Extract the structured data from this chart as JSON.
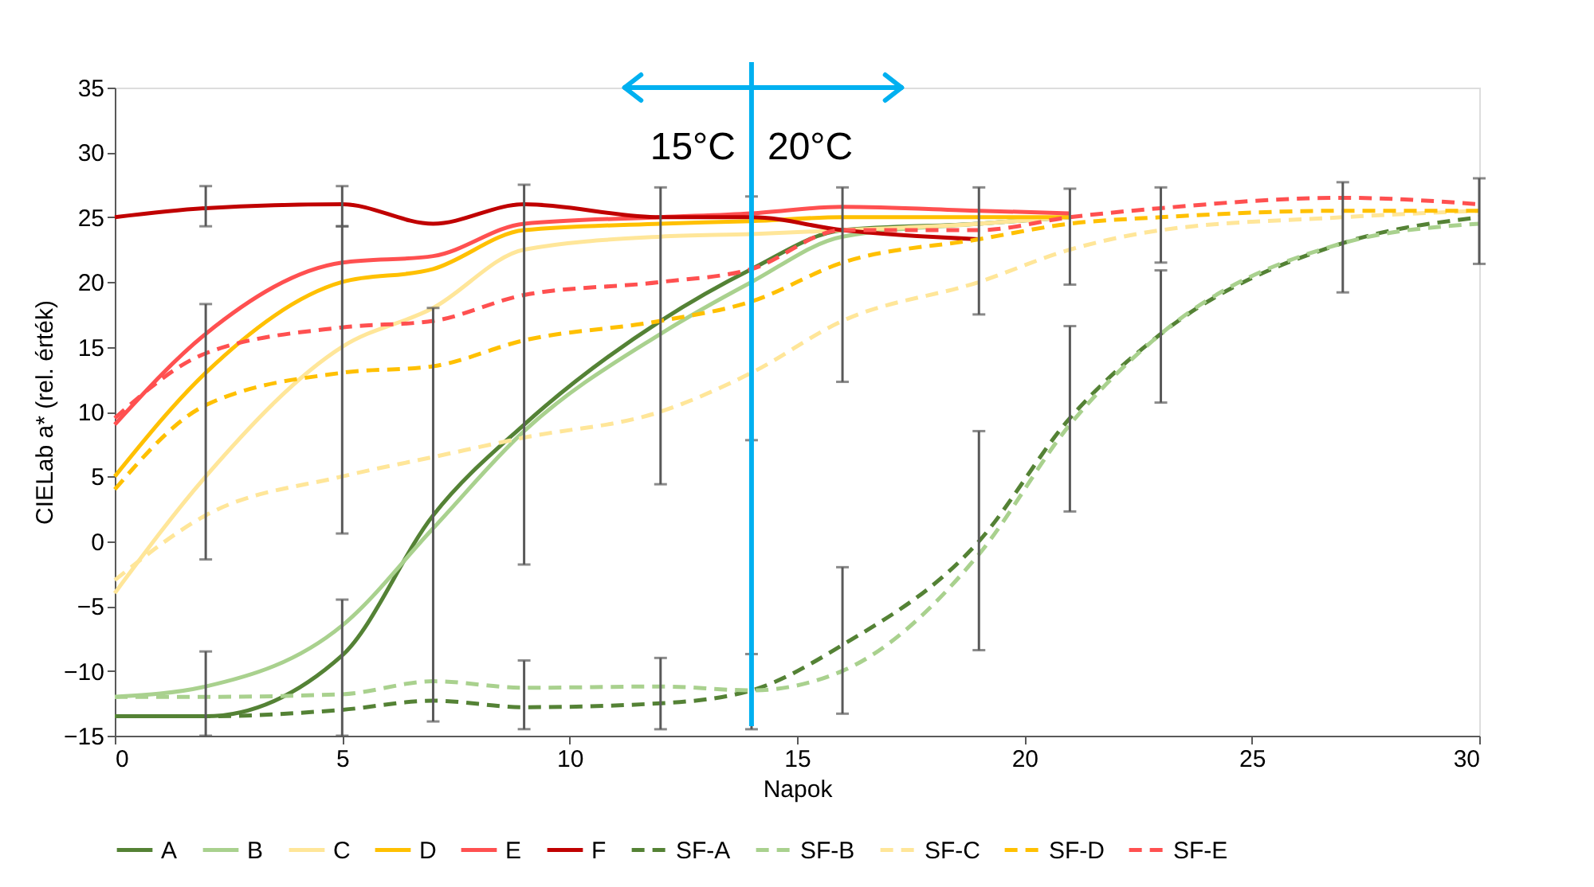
{
  "chart_data": {
    "type": "line",
    "xlabel": "Napok",
    "ylabel": "CIELab a* (rel. érték)",
    "xlim": [
      0,
      30
    ],
    "xticks": [
      0,
      5,
      10,
      15,
      20,
      25,
      30
    ],
    "ylim": [
      -15,
      35
    ],
    "yticks": [
      -15,
      -10,
      -5,
      0,
      5,
      10,
      15,
      20,
      25,
      30,
      35
    ],
    "grid": false,
    "legend": "bottom",
    "marker": "none",
    "series": [
      {
        "name": "A",
        "color": "#548235",
        "line_style": "solid",
        "x": [
          0,
          2,
          5,
          7,
          9,
          12,
          14,
          16,
          19,
          21
        ],
        "values": [
          -13.5,
          -13.5,
          -8.8,
          2,
          9,
          17,
          21,
          24,
          24.5,
          25
        ],
        "errors": [
          null,
          [
            -15,
            -8.5
          ],
          [
            -15,
            -4.5
          ],
          [
            -13.9,
            18
          ],
          [
            -1.8,
            27.5
          ],
          [
            4.4,
            27.3
          ],
          [
            7.8,
            26.6
          ],
          null,
          null,
          null
        ]
      },
      {
        "name": "B",
        "color": "#a9d18e",
        "line_style": "solid",
        "x": [
          0,
          2,
          5,
          7,
          9,
          12,
          14,
          16,
          19,
          21
        ],
        "values": [
          -12,
          -11.2,
          -6.5,
          1,
          8.5,
          16,
          20,
          23.5,
          24.5,
          25
        ]
      },
      {
        "name": "C",
        "color": "#ffe699",
        "line_style": "solid",
        "x": [
          0,
          2,
          5,
          7,
          9,
          12,
          14,
          16,
          19,
          21
        ],
        "values": [
          -4,
          5,
          15,
          18,
          22.5,
          23.5,
          23.7,
          24,
          24.5,
          25
        ],
        "errors": [
          null,
          [
            -1.4,
            18.3
          ],
          [
            0.6,
            24.3
          ],
          null,
          null,
          null,
          null,
          null,
          null,
          null
        ]
      },
      {
        "name": "D",
        "color": "#ffc000",
        "line_style": "solid",
        "x": [
          0,
          2,
          5,
          7,
          9,
          12,
          14,
          16,
          19,
          21
        ],
        "values": [
          5,
          13,
          20,
          21,
          24,
          24.5,
          24.7,
          25,
          25,
          25
        ]
      },
      {
        "name": "E",
        "color": "#ff5050",
        "line_style": "solid",
        "x": [
          0,
          2,
          5,
          7,
          9,
          12,
          14,
          16,
          19,
          21
        ],
        "values": [
          9,
          16,
          21.5,
          22,
          24.5,
          25,
          25.3,
          25.8,
          25.5,
          25.3
        ]
      },
      {
        "name": "F",
        "color": "#c00000",
        "line_style": "solid",
        "x": [
          0,
          2,
          5,
          7,
          9,
          12,
          14,
          16,
          19
        ],
        "values": [
          25,
          25.7,
          26,
          24.5,
          26,
          25,
          25,
          24,
          23.3
        ],
        "errors": [
          null,
          [
            24.3,
            27.4
          ],
          [
            24.3,
            27.4
          ],
          null,
          null,
          null,
          null,
          null,
          null
        ]
      },
      {
        "name": "SF-A",
        "color": "#548235",
        "line_style": "dashed",
        "x": [
          0,
          2,
          5,
          7,
          9,
          12,
          14,
          16,
          19,
          21,
          23,
          27,
          30
        ],
        "values": [
          -13.5,
          -13.5,
          -13,
          -12.3,
          -12.8,
          -12.5,
          -11.5,
          -8,
          0,
          9.5,
          16,
          23,
          25
        ],
        "errors": [
          null,
          null,
          null,
          null,
          [
            -14.5,
            -9.2
          ],
          [
            -14.5,
            -9
          ],
          [
            -14.5,
            -8.7
          ],
          [
            -13.3,
            -2
          ],
          [
            -8.4,
            8.5
          ],
          [
            2.3,
            16.6
          ],
          [
            10.7,
            20.9
          ],
          [
            19.2,
            27.7
          ],
          [
            21.4,
            28
          ]
        ]
      },
      {
        "name": "SF-B",
        "color": "#a9d18e",
        "line_style": "dashed",
        "x": [
          0,
          2,
          5,
          7,
          9,
          12,
          14,
          16,
          19,
          21,
          23,
          27,
          30
        ],
        "values": [
          -12,
          -12,
          -11.8,
          -10.8,
          -11.3,
          -11.2,
          -11.5,
          -10,
          -1,
          9,
          16,
          23,
          24.5
        ]
      },
      {
        "name": "SF-C",
        "color": "#ffe699",
        "line_style": "dashed",
        "x": [
          0,
          2,
          5,
          7,
          9,
          12,
          14,
          16,
          19,
          21,
          23,
          27,
          30
        ],
        "values": [
          -3,
          2,
          5,
          6.5,
          8,
          10,
          13,
          17,
          20,
          22.5,
          24,
          25,
          25.5
        ],
        "errors": [
          null,
          null,
          null,
          null,
          null,
          null,
          null,
          [
            12.3,
            27.3
          ],
          [
            17.5,
            27.3
          ],
          [
            19.8,
            27.2
          ],
          [
            21.5,
            27.3
          ],
          null,
          null
        ]
      },
      {
        "name": "SF-D",
        "color": "#ffc000",
        "line_style": "dashed",
        "x": [
          0,
          2,
          5,
          7,
          9,
          12,
          14,
          16,
          19,
          21,
          23,
          27,
          30
        ],
        "values": [
          4,
          10.5,
          13,
          13.5,
          15.5,
          17,
          18.5,
          21.5,
          23.3,
          24.5,
          25,
          25.5,
          25.5
        ]
      },
      {
        "name": "SF-E",
        "color": "#ff5050",
        "line_style": "dashed",
        "x": [
          0,
          2,
          5,
          7,
          9,
          12,
          14,
          16,
          19,
          21,
          23,
          27,
          30
        ],
        "values": [
          9.5,
          14.5,
          16.5,
          17,
          19,
          20,
          21,
          24,
          24,
          25,
          25.7,
          26.5,
          26
        ]
      }
    ],
    "ref_lines": [
      {
        "axis": "x",
        "value": 14,
        "color": "#00b0f0",
        "line_style": "solid"
      }
    ],
    "annotations": [
      "15°C",
      "20°C"
    ]
  }
}
